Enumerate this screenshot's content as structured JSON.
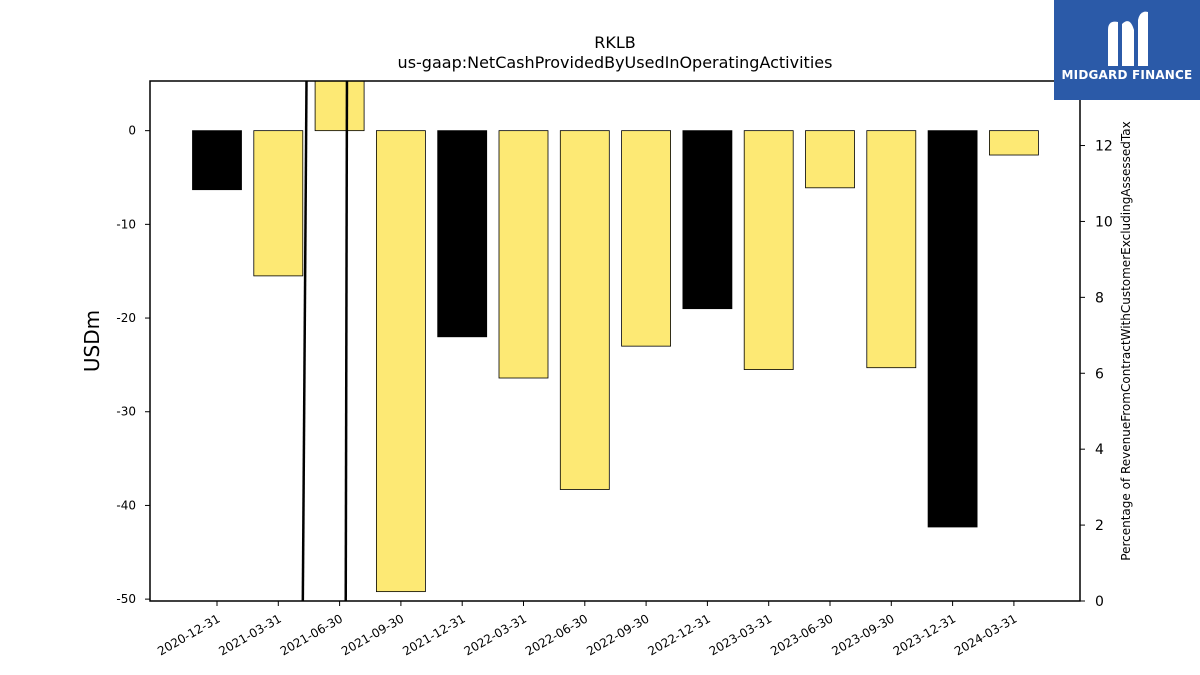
{
  "chart_data": {
    "type": "bar",
    "title": "RKLB",
    "subtitle": "us-gaap:NetCashProvidedByUsedInOperatingActivities",
    "ylabel": "USDm",
    "y2label": "Percentage of RevenueFromContractWithCustomerExcludingAssessedTax",
    "ylim": [
      -50.2,
      5.3
    ],
    "y2lim": [
      0,
      13.7
    ],
    "yticks": [
      0,
      -10,
      -20,
      -30,
      -40,
      -50
    ],
    "y2ticks": [
      0,
      2,
      4,
      6,
      8,
      10,
      12
    ],
    "categories": [
      "2020-12-31",
      "2021-03-31",
      "2021-06-30",
      "2021-09-30",
      "2021-12-31",
      "2022-03-31",
      "2022-06-30",
      "2022-09-30",
      "2022-12-31",
      "2023-03-31",
      "2023-06-30",
      "2023-09-30",
      "2023-12-31",
      "2024-03-31"
    ],
    "values": [
      -6.3,
      -15.5,
      5.3,
      -49.2,
      -22.0,
      -26.4,
      -38.3,
      -23.0,
      -19.0,
      -25.5,
      -6.1,
      -25.3,
      -42.3,
      -2.6
    ],
    "bar_colors": [
      "#000000",
      "#fde974",
      "#fde974",
      "#fde974",
      "#000000",
      "#fde974",
      "#fde974",
      "#fde974",
      "#000000",
      "#fde974",
      "#fde974",
      "#fde974",
      "#000000",
      "#fde974"
    ],
    "line_series": [
      {
        "x_index": [
          1.4,
          1.46
        ],
        "y2": [
          0,
          13.7
        ]
      },
      {
        "x_index": [
          2.1,
          2.12
        ],
        "y2": [
          0,
          13.7
        ]
      }
    ],
    "colors": {
      "positive_bar": "#fde974",
      "negative_bar_alt": "#000000",
      "line": "#000000"
    }
  },
  "logo": {
    "text": "MIDGARD FINANCE",
    "background": "#2b5aa8"
  }
}
